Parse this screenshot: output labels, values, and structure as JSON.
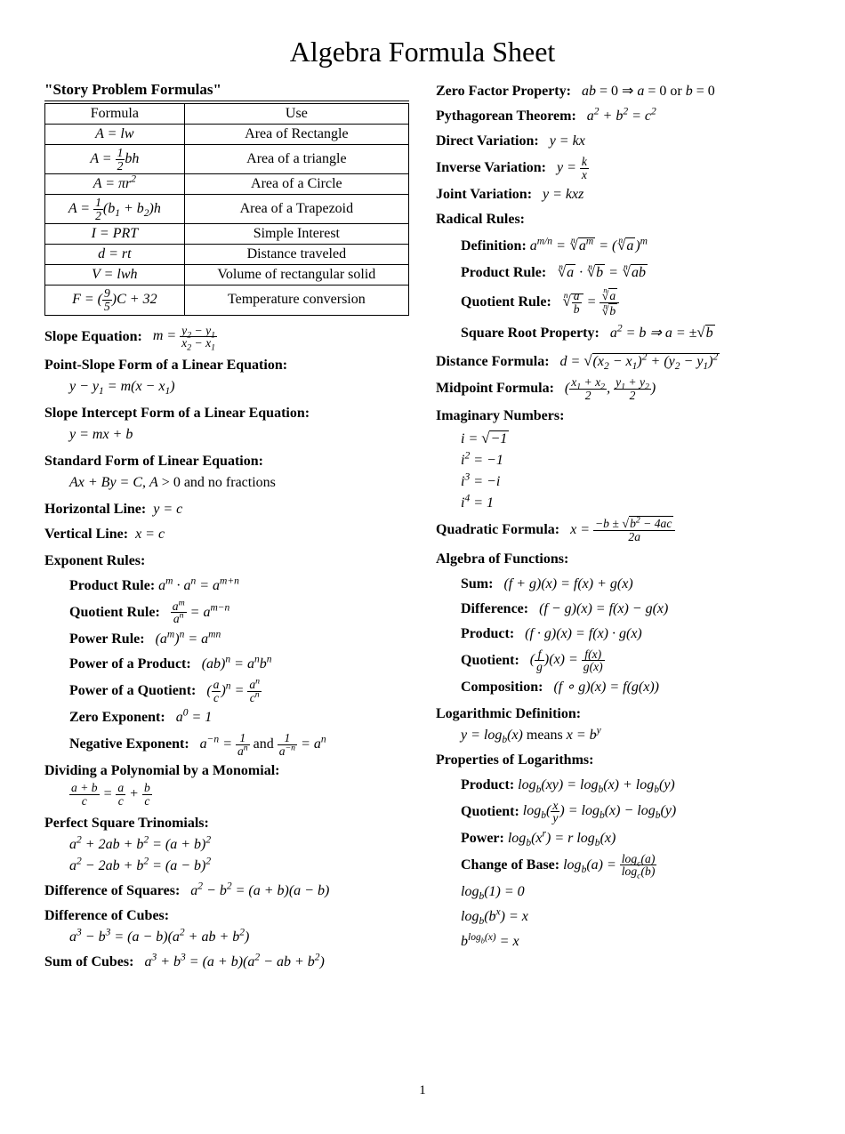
{
  "title": "Algebra Formula Sheet",
  "page_number": "1",
  "left": {
    "story_header": "\"Story Problem Formulas\"",
    "table": {
      "headers": [
        "Formula",
        "Use"
      ],
      "rows": [
        {
          "formula_html": "<span class='math'>A = lw</span>",
          "use": "Area of Rectangle"
        },
        {
          "formula_html": "<span class='math'>A = <span class='frac'><span class='num'>1</span><span class='den'>2</span></span>bh</span>",
          "use": "Area of a triangle"
        },
        {
          "formula_html": "<span class='math'>A = πr<sup>2</sup></span>",
          "use": "Area of a Circle"
        },
        {
          "formula_html": "<span class='math'>A = <span class='frac'><span class='num'>1</span><span class='den'>2</span></span>(b<sub>1</sub> + b<sub>2</sub>)h</span>",
          "use": "Area of a Trapezoid"
        },
        {
          "formula_html": "<span class='math'>I = PRT</span>",
          "use": "Simple Interest"
        },
        {
          "formula_html": "<span class='math'>d = rt</span>",
          "use": "Distance traveled"
        },
        {
          "formula_html": "<span class='math'>V = lwh</span>",
          "use": "Volume of rectangular solid"
        },
        {
          "formula_html": "<span class='math'>F = (<span class='frac'><span class='num'>9</span><span class='den'>5</span></span>)C + 32</span>",
          "use": "Temperature conversion"
        }
      ]
    },
    "slope_eq_label": "Slope Equation:",
    "slope_eq_html": "<span class='math'>m = <span class='frac'><span class='num'>y<sub>2</sub> − y<sub>1</sub></span><span class='den'>x<sub>2</sub> − x<sub>1</sub></span></span></span>",
    "point_slope_label": "Point-Slope Form of a Linear Equation:",
    "point_slope_html": "<span class='math'>y − y<sub>1</sub> = m(x − x<sub>1</sub>)</span>",
    "slope_int_label": "Slope Intercept Form of a Linear Equation:",
    "slope_int_html": "<span class='math'>y = mx + b</span>",
    "standard_label": "Standard Form of Linear Equation:",
    "standard_html": "<span class='math'>Ax + By = C</span>, <span class='math'>A</span> > 0 and no fractions",
    "hline_label": "Horizontal Line:",
    "hline_html": "<span class='math'>y = c</span>",
    "vline_label": "Vertical Line:",
    "vline_html": "<span class='math'>x = c</span>",
    "exp_header": "Exponent Rules:",
    "exp": {
      "product_label": "Product Rule:",
      "product_html": "<span class='math'>a<sup>m</sup> · a<sup>n</sup> = a<sup>m+n</sup></span>",
      "quotient_label": "Quotient Rule:",
      "quotient_html": "<span class='math'><span class='frac'><span class='num'>a<sup>m</sup></span><span class='den'>a<sup>n</sup></span></span> = a<sup>m−n</sup></span>",
      "power_label": "Power Rule:",
      "power_html": "<span class='math'>(a<sup>m</sup>)<sup>n</sup> = a<sup>mn</sup></span>",
      "pprod_label": "Power of a Product:",
      "pprod_html": "<span class='math'>(ab)<sup>n</sup> = a<sup>n</sup>b<sup>n</sup></span>",
      "pquot_label": "Power of a Quotient:",
      "pquot_html": "<span class='math'>(<span class='frac'><span class='num'>a</span><span class='den'>c</span></span>)<sup>n</sup> = <span class='frac'><span class='num'>a<sup>n</sup></span><span class='den'>c<sup>n</sup></span></span></span>",
      "zero_label": "Zero Exponent:",
      "zero_html": "<span class='math'>a<sup>0</sup> = 1</span>",
      "neg_label": "Negative Exponent:",
      "neg_html": "<span class='math'>a<sup>−n</sup> = <span class='frac'><span class='num'>1</span><span class='den'>a<sup>n</sup></span></span></span> and <span class='math'><span class='frac'><span class='num'>1</span><span class='den'>a<sup>−n</sup></span></span> = a<sup>n</sup></span>"
    },
    "divpoly_label": "Dividing a Polynomial by a Monomial:",
    "divpoly_html": "<span class='math'><span class='frac'><span class='num'>a + b</span><span class='den'>c</span></span> = <span class='frac'><span class='num'>a</span><span class='den'>c</span></span> + <span class='frac'><span class='num'>b</span><span class='den'>c</span></span></span>",
    "pst_label": "Perfect Square Trinomials:",
    "pst1_html": "<span class='math'>a<sup>2</sup> + 2ab + b<sup>2</sup> = (a + b)<sup>2</sup></span>",
    "pst2_html": "<span class='math'>a<sup>2</sup> − 2ab + b<sup>2</sup> = (a − b)<sup>2</sup></span>",
    "dsq_label": "Difference of Squares:",
    "dsq_html": "<span class='math'>a<sup>2</sup> − b<sup>2</sup> = (a + b)(a − b)</span>",
    "dcubes_label": "Difference of Cubes:",
    "dcubes_html": "<span class='math'>a<sup>3</sup> − b<sup>3</sup> = (a − b)(a<sup>2</sup> + ab + b<sup>2</sup>)</span>",
    "scubes_label": "Sum of Cubes:",
    "scubes_html": "<span class='math'>a<sup>3</sup> + b<sup>3</sup> = (a + b)(a<sup>2</sup> − ab + b<sup>2</sup>)</span>"
  },
  "right": {
    "zfp_label": "Zero Factor Property:",
    "zfp_html": "<span class='math'>ab</span> = 0 ⇒ <span class='math'>a</span> = 0 or <span class='math'>b</span> = 0",
    "pyth_label": "Pythagorean Theorem:",
    "pyth_html": "<span class='math'>a<sup>2</sup> + b<sup>2</sup> = c<sup>2</sup></span>",
    "dvar_label": "Direct Variation:",
    "dvar_html": "<span class='math'>y = kx</span>",
    "ivar_label": "Inverse Variation:",
    "ivar_html": "<span class='math'>y = <span class='frac'><span class='num'>k</span><span class='den'>x</span></span></span>",
    "jvar_label": "Joint Variation:",
    "jvar_html": "<span class='math'>y = kxz</span>",
    "rad_header": "Radical Rules:",
    "rad": {
      "def_label": "Definition:",
      "def_html": "<span class='math'>a<sup>m/n</sup> = <span class='sqrt'><span class='root-index'>n</span><span class='radix'>√</span><span class='radicand'>a<sup>m</sup></span></span> = (<span class='sqrt'><span class='root-index'>n</span><span class='radix'>√</span><span class='radicand'>a</span></span>)<sup>m</sup></span>",
      "prod_label": "Product Rule:",
      "prod_html": "<span class='math'><span class='sqrt'><span class='root-index'>n</span><span class='radix'>√</span><span class='radicand'>a</span></span> · <span class='sqrt'><span class='root-index'>n</span><span class='radix'>√</span><span class='radicand'>b</span></span> = <span class='sqrt'><span class='root-index'>n</span><span class='radix'>√</span><span class='radicand'>ab</span></span></span>",
      "quot_label": "Quotient Rule:",
      "quot_html": "<span class='math'><span class='sqrt'><span class='root-index'>n</span><span class='radix'>√</span><span class='radicand'><span class='frac'><span class='num'>a</span><span class='den'>b</span></span></span></span> = <span class='frac'><span class='num'><span class='sqrt'><span class='root-index'>n</span><span class='radix'>√</span><span class='radicand'>a</span></span></span><span class='den'><span class='sqrt'><span class='root-index'>n</span><span class='radix'>√</span><span class='radicand'>b</span></span></span></span></span>",
      "sqrt_label": "Square Root Property:",
      "sqrt_html": "<span class='math'>a<sup>2</sup> = b ⇒ a = ±<span class='sqrt'><span class='radix'>√</span><span class='radicand'>b</span></span></span>"
    },
    "dist_label": "Distance Formula:",
    "dist_html": "<span class='math'>d = <span class='sqrt'><span class='radix'>√</span><span class='radicand'>(x<sub>2</sub> − x<sub>1</sub>)<sup>2</sup> + (y<sub>2</sub> − y<sub>1</sub>)<sup>2</sup></span></span></span>",
    "mid_label": "Midpoint Formula:",
    "mid_html": "<span class='math'>(<span class='frac'><span class='num'>x<sub>1</sub> + x<sub>2</sub></span><span class='den'>2</span></span>, <span class='frac'><span class='num'>y<sub>1</sub> + y<sub>2</sub></span><span class='den'>2</span></span>)</span>",
    "imag_label": "Imaginary Numbers:",
    "imag1_html": "<span class='math'>i = <span class='sqrt'><span class='radix'>√</span><span class='radicand'>−1</span></span></span>",
    "imag2_html": "<span class='math'>i<sup>2</sup> = −1</span>",
    "imag3_html": "<span class='math'>i<sup>3</sup> = −i</span>",
    "imag4_html": "<span class='math'>i<sup>4</sup> = 1</span>",
    "quad_label": "Quadratic Formula:",
    "quad_html": "<span class='math'>x = <span class='frac'><span class='num'>−b ± <span class='sqrt'><span class='radix'>√</span><span class='radicand'>b<sup>2</sup> − 4ac</span></span></span><span class='den'>2a</span></span></span>",
    "af_header": "Algebra of Functions:",
    "af": {
      "sum_label": "Sum:",
      "sum_html": "<span class='math'>(f + g)(x) = f(x) + g(x)</span>",
      "diff_label": "Difference:",
      "diff_html": "<span class='math'>(f − g)(x) = f(x) − g(x)</span>",
      "prod_label": "Product:",
      "prod_html": "<span class='math'>(f · g)(x) = f(x) · g(x)</span>",
      "quot_label": "Quotient:",
      "quot_html": "<span class='math'>(<span class='frac'><span class='num'>f</span><span class='den'>g</span></span>)(x) = <span class='frac'><span class='num'>f(x)</span><span class='den'>g(x)</span></span></span>",
      "comp_label": "Composition:",
      "comp_html": "<span class='math'>(f ∘ g)(x) = f(g(x))</span>"
    },
    "log_def_label": "Logarithmic Definition:",
    "log_def_html": "<span class='math'>y = log<sub>b</sub>(x)</span> means <span class='math'>x = b<sup>y</sup></span>",
    "log_props_label": "Properties of Logarithms:",
    "log": {
      "prod_label": "Product:",
      "prod_html": "<span class='math'>log<sub>b</sub>(xy) = log<sub>b</sub>(x) + log<sub>b</sub>(y)</span>",
      "quot_label": "Quotient:",
      "quot_html": "<span class='math'>log<sub>b</sub>(<span class='frac'><span class='num'>x</span><span class='den'>y</span></span>) = log<sub>b</sub>(x) − log<sub>b</sub>(y)</span>",
      "pow_label": "Power:",
      "pow_html": "<span class='math'>log<sub>b</sub>(x<sup>r</sup>) = r log<sub>b</sub>(x)</span>",
      "cob_label": "Change of Base:",
      "cob_html": "<span class='math'>log<sub>b</sub>(a) = <span class='frac'><span class='num'>log<sub>c</sub>(a)</span><span class='den'>log<sub>c</sub>(b)</span></span></span>",
      "id1_html": "<span class='math'>log<sub>b</sub>(1) = 0</span>",
      "id2_html": "<span class='math'>log<sub>b</sub>(b<sup>x</sup>) = x</span>",
      "id3_html": "<span class='math'>b<sup>log<sub>b</sub>(x)</sup> = x</span>"
    }
  }
}
